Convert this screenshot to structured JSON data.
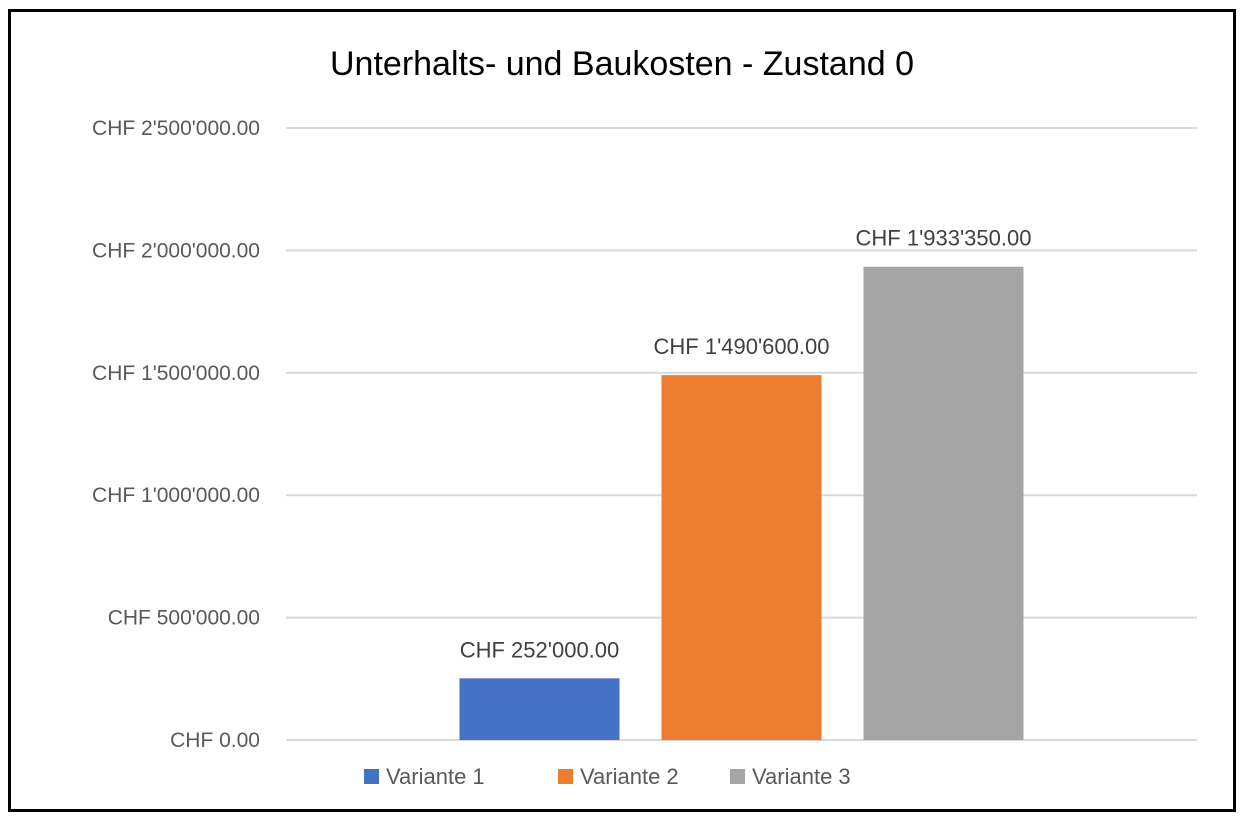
{
  "chart_data": {
    "type": "bar",
    "title": "Unterhalts- und Baukosten - Zustand 0",
    "xlabel": "",
    "ylabel": "",
    "categories": [
      ""
    ],
    "ylim": [
      0,
      2500000
    ],
    "yticks": [
      0,
      500000,
      1000000,
      1500000,
      2000000,
      2500000
    ],
    "ytick_labels": [
      "CHF 0.00",
      "CHF 500'000.00",
      "CHF 1'000'000.00",
      "CHF 1'500'000.00",
      "CHF 2'000'000.00",
      "CHF 2'500'000.00"
    ],
    "grid": true,
    "legend_position": "bottom",
    "series": [
      {
        "name": "Variante 1",
        "values": [
          252000
        ],
        "label": "CHF 252'000.00",
        "color": "#4472C4"
      },
      {
        "name": "Variante 2",
        "values": [
          1490600
        ],
        "label": "CHF 1'490'600.00",
        "color": "#ED7D31"
      },
      {
        "name": "Variante 3",
        "values": [
          1933350
        ],
        "label": "CHF 1'933'350.00",
        "color": "#A5A5A5"
      }
    ]
  }
}
